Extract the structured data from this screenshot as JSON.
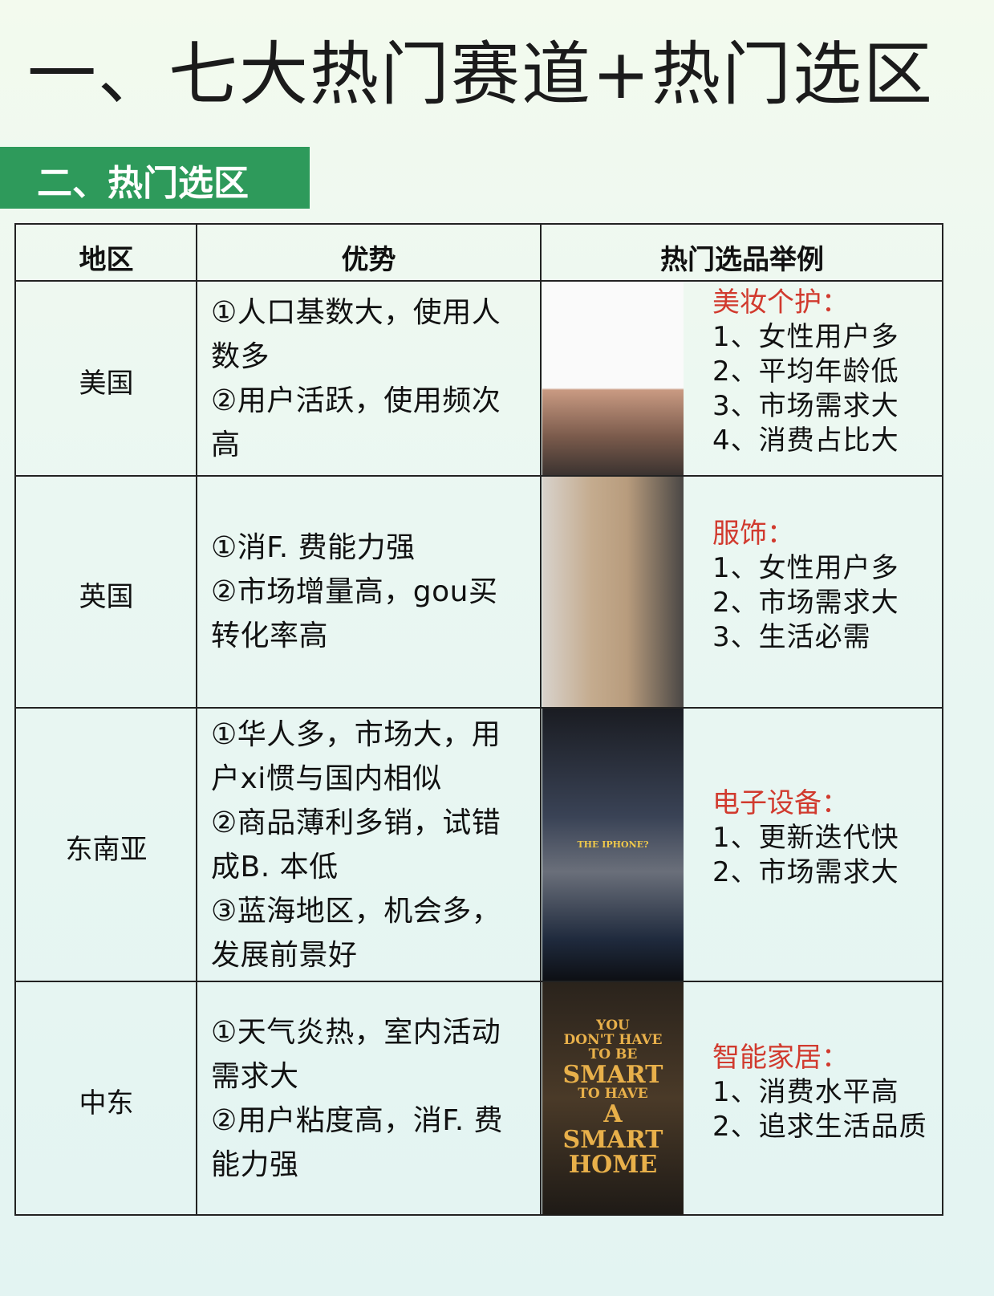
{
  "header": {
    "title": "一、七大热门赛道+热门选区",
    "section": "二、热门选区"
  },
  "table": {
    "columns": [
      "地区",
      "优势",
      "热门选品举例"
    ],
    "rows": [
      {
        "region": "美国",
        "advantages": [
          "①人口基数大，使用人数多",
          "②用户活跃，使用频次高"
        ],
        "category": "美妆个护：",
        "points": [
          "1、女性用户多",
          "2、平均年龄低",
          "3、市场需求大",
          "4、消费占比大"
        ]
      },
      {
        "region": "英国",
        "advantages": [
          "①消F. 费能力强",
          "②市场增量高，gou买转化率高"
        ],
        "category": "服饰：",
        "points": [
          "1、女性用户多",
          "2、市场需求大",
          "3、生活必需"
        ]
      },
      {
        "region": "东南亚",
        "advantages": [
          "①华人多，市场大，用户xi惯与国内相似",
          "②商品薄利多销，试错成B. 本低",
          "③蓝海地区，机会多，发展前景好"
        ],
        "category": "电子设备：",
        "points": [
          "1、更新迭代快",
          "2、市场需求大"
        ],
        "image_text": [
          "THE IPHONE?"
        ]
      },
      {
        "region": "中东",
        "advantages": [
          "①天气炎热，室内活动需求大",
          "②用户粘度高，消F. 费能力强"
        ],
        "category": "智能家居：",
        "points": [
          "1、消费水平高",
          "2、追求生活品质"
        ],
        "image_text": [
          "YOU",
          "DON'T HAVE",
          "TO BE",
          "SMART",
          "TO HAVE",
          "A",
          "SMART",
          "HOME"
        ]
      }
    ]
  }
}
